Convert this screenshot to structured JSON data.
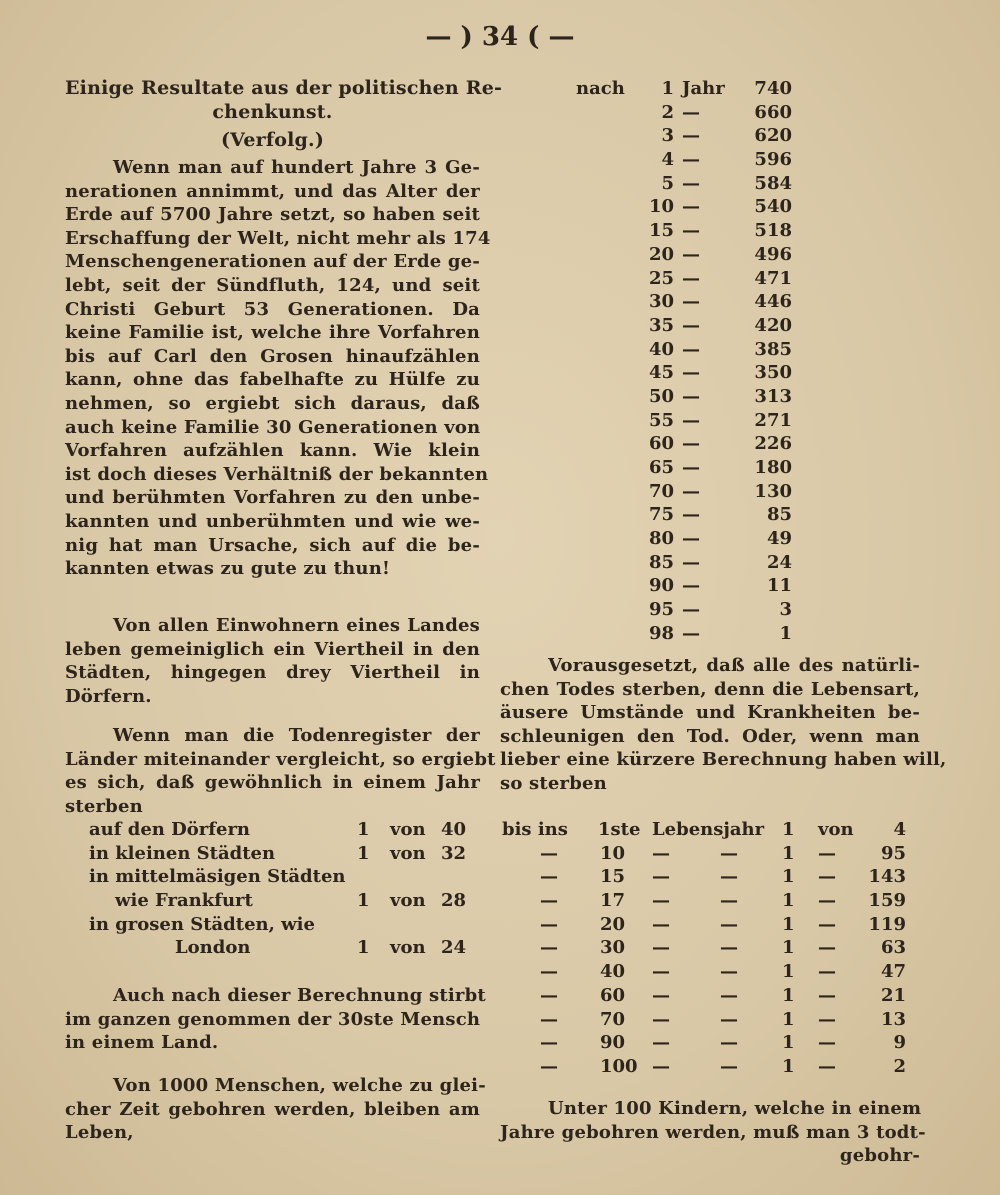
{
  "header": {
    "page_number": "— ) 34 ( —"
  },
  "left": {
    "title": [
      "Einige Resultate aus der politischen Re-",
      "chenkunst."
    ],
    "subtitle": "(Verfolg.)",
    "para1": [
      "Wenn man auf hundert Jahre 3 Ge-",
      "nerationen annimmt, und das Alter der",
      "Erde auf 5700 Jahre setzt, so haben seit",
      "Erschaffung der Welt, nicht mehr als 174",
      "Menschengenerationen auf der Erde ge-",
      "lebt, seit der Sündfluth, 124, und seit",
      "Christi Geburt 53 Generationen. Da",
      "keine Familie ist, welche ihre Vorfahren",
      "bis auf Carl den Grosen hinaufzählen",
      "kann, ohne das fabelhafte zu Hülfe zu",
      "nehmen, so ergiebt sich daraus, daß",
      "auch keine Familie 30 Generationen von",
      "Vorfahren aufzählen kann. Wie klein",
      "ist doch dieses Verhältniß der bekannten",
      "und berühmten Vorfahren zu den unbe-",
      "kannten und unberühmten und wie we-",
      "nig hat man Ursache, sich auf die be-",
      "kannten etwas zu gute zu thun!"
    ],
    "para2": [
      "Von allen Einwohnern eines Landes",
      "leben gemeiniglich ein Viertheil in den",
      "Städten, hingegen drey Viertheil in",
      "Dörfern."
    ],
    "para3": [
      "Wenn man die Todenregister der",
      "Länder miteinander vergleicht, so ergiebt",
      "es sich, daß gewöhnlich in einem Jahr",
      "sterben"
    ],
    "death_rates": [
      {
        "place": "auf den Dörfern",
        "one": "1",
        "von": "von",
        "n": "40"
      },
      {
        "place": "in kleinen Städten",
        "one": "1",
        "von": "von",
        "n": "32"
      },
      {
        "place": "in mittelmäsigen Städten",
        "one": "",
        "von": "",
        "n": ""
      },
      {
        "place": "wie Frankfurt",
        "one": "1",
        "von": "von",
        "n": "28"
      },
      {
        "place": "in grosen Städten, wie",
        "one": "",
        "von": "",
        "n": ""
      },
      {
        "place": "London",
        "one": "1",
        "von": "von",
        "n": "24"
      }
    ],
    "para4": [
      "Auch nach dieser Berechnung stirbt",
      "im ganzen genommen der 30ste Mensch",
      "in einem Land."
    ],
    "para5": [
      "Von 1000 Menschen, welche zu glei-",
      "cher Zeit gebohren werden, bleiben am",
      "Leben,"
    ]
  },
  "right": {
    "survival": [
      {
        "pre": "nach",
        "age": "1",
        "unit": "Jahr",
        "n": "740"
      },
      {
        "pre": "",
        "age": "2",
        "unit": "—",
        "n": "660"
      },
      {
        "pre": "",
        "age": "3",
        "unit": "—",
        "n": "620"
      },
      {
        "pre": "",
        "age": "4",
        "unit": "—",
        "n": "596"
      },
      {
        "pre": "",
        "age": "5",
        "unit": "—",
        "n": "584"
      },
      {
        "pre": "",
        "age": "10",
        "unit": "—",
        "n": "540"
      },
      {
        "pre": "",
        "age": "15",
        "unit": "—",
        "n": "518"
      },
      {
        "pre": "",
        "age": "20",
        "unit": "—",
        "n": "496"
      },
      {
        "pre": "",
        "age": "25",
        "unit": "—",
        "n": "471"
      },
      {
        "pre": "",
        "age": "30",
        "unit": "—",
        "n": "446"
      },
      {
        "pre": "",
        "age": "35",
        "unit": "—",
        "n": "420"
      },
      {
        "pre": "",
        "age": "40",
        "unit": "—",
        "n": "385"
      },
      {
        "pre": "",
        "age": "45",
        "unit": "—",
        "n": "350"
      },
      {
        "pre": "",
        "age": "50",
        "unit": "—",
        "n": "313"
      },
      {
        "pre": "",
        "age": "55",
        "unit": "—",
        "n": "271"
      },
      {
        "pre": "",
        "age": "60",
        "unit": "—",
        "n": "226"
      },
      {
        "pre": "",
        "age": "65",
        "unit": "—",
        "n": "180"
      },
      {
        "pre": "",
        "age": "70",
        "unit": "—",
        "n": "130"
      },
      {
        "pre": "",
        "age": "75",
        "unit": "—",
        "n": "85"
      },
      {
        "pre": "",
        "age": "80",
        "unit": "—",
        "n": "49"
      },
      {
        "pre": "",
        "age": "85",
        "unit": "—",
        "n": "24"
      },
      {
        "pre": "",
        "age": "90",
        "unit": "—",
        "n": "11"
      },
      {
        "pre": "",
        "age": "95",
        "unit": "—",
        "n": "3"
      },
      {
        "pre": "",
        "age": "98",
        "unit": "—",
        "n": "1"
      }
    ],
    "para1": [
      "Vorausgesetzt, daß alle des natürli-",
      "chen Todes sterben, denn die Lebensart,",
      "äusere Umstände und Krankheiten be-",
      "schleunigen den Tod. Oder, wenn man",
      "lieber eine kürzere Berechnung haben will,",
      "so sterben"
    ],
    "mortality": [
      {
        "a": "bis ins",
        "b": "1ste",
        "c": "Lebensjahr",
        "d": "",
        "one": "1",
        "von": "von",
        "n": "4"
      },
      {
        "a": "—",
        "b": "10",
        "c": "—",
        "d": "—",
        "one": "1",
        "von": "—",
        "n": "95"
      },
      {
        "a": "—",
        "b": "15",
        "c": "—",
        "d": "—",
        "one": "1",
        "von": "—",
        "n": "143"
      },
      {
        "a": "—",
        "b": "17",
        "c": "—",
        "d": "—",
        "one": "1",
        "von": "—",
        "n": "159"
      },
      {
        "a": "—",
        "b": "20",
        "c": "—",
        "d": "—",
        "one": "1",
        "von": "—",
        "n": "119"
      },
      {
        "a": "—",
        "b": "30",
        "c": "—",
        "d": "—",
        "one": "1",
        "von": "—",
        "n": "63"
      },
      {
        "a": "—",
        "b": "40",
        "c": "—",
        "d": "—",
        "one": "1",
        "von": "—",
        "n": "47"
      },
      {
        "a": "—",
        "b": "60",
        "c": "—",
        "d": "—",
        "one": "1",
        "von": "—",
        "n": "21"
      },
      {
        "a": "—",
        "b": "70",
        "c": "—",
        "d": "—",
        "one": "1",
        "von": "—",
        "n": "13"
      },
      {
        "a": "—",
        "b": "90",
        "c": "—",
        "d": "—",
        "one": "1",
        "von": "—",
        "n": "9"
      },
      {
        "a": "—",
        "b": "100",
        "c": "—",
        "d": "—",
        "one": "1",
        "von": "—",
        "n": "2"
      }
    ],
    "para2": [
      "Unter 100 Kindern, welche in einem",
      "Jahre gebohren werden, muß man 3 todt-",
      "gebohr-"
    ]
  }
}
